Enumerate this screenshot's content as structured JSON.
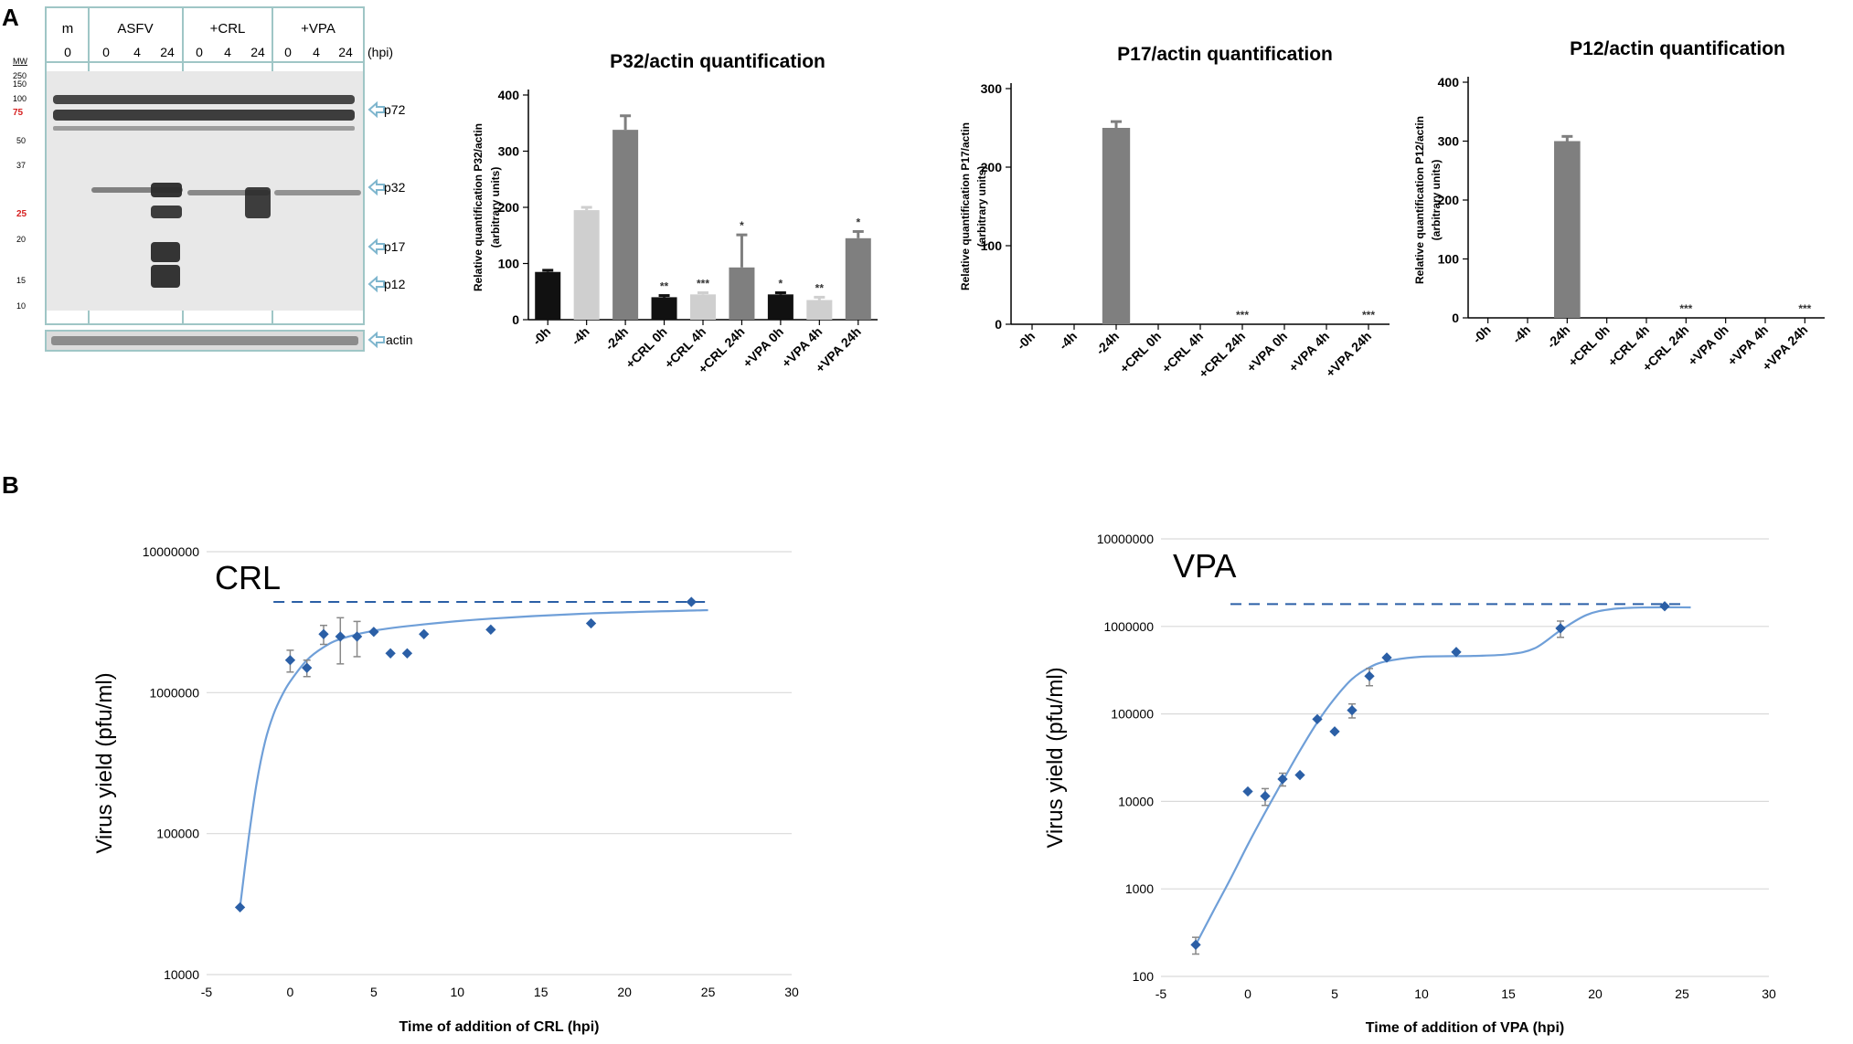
{
  "panel_labels": {
    "a": "A",
    "b": "B"
  },
  "colors": {
    "black_bar": "#111111",
    "light_bar": "#cfcfcf",
    "gray_bar": "#7f7f7f",
    "point": "#2b5fa6",
    "fit": "#6f9fd8",
    "grid": "#d9d9d9",
    "blot_bg": "#e7e7e7",
    "arrow": "#9fd0e3"
  },
  "blot": {
    "groups": [
      "m",
      "ASFV",
      "+CRL",
      "+VPA"
    ],
    "lanes": [
      "0",
      "0",
      "4",
      "24",
      "0",
      "4",
      "24",
      "0",
      "4",
      "24"
    ],
    "hpi_label": "(hpi)",
    "mw_label": "MW",
    "mw_markers": [
      "250",
      "150",
      "100",
      "75",
      "50",
      "37",
      "25",
      "20",
      "15",
      "10"
    ],
    "bands": [
      "p72",
      "p32",
      "p17",
      "p12",
      "actin"
    ]
  },
  "chart_data": [
    {
      "type": "bar",
      "title": "P32/actin quantification",
      "ylabel": "Relative quantification P32/actin",
      "ylabel2": "(arbitrary units)",
      "categories": [
        "-0h",
        "-4h",
        "-24h",
        "+CRL 0h",
        "+CRL 4h",
        "+CRL 24h",
        "+VPA 0h",
        "+VPA 4h",
        "+VPA 24h"
      ],
      "values": [
        85,
        195,
        338,
        40,
        45,
        93,
        45,
        35,
        145
      ],
      "errors": [
        3,
        5,
        25,
        3,
        3,
        58,
        3,
        5,
        12
      ],
      "significance": [
        "",
        "",
        "",
        "**",
        "***",
        "*",
        "*",
        "**",
        "*"
      ],
      "bar_colors": [
        "black",
        "light",
        "gray",
        "black",
        "light",
        "gray",
        "black",
        "light",
        "gray"
      ],
      "yticks": [
        0,
        100,
        200,
        300,
        400
      ],
      "ylim": [
        0,
        400
      ]
    },
    {
      "type": "bar",
      "title": "P17/actin quantification",
      "ylabel": "Relative quantification P17/actin",
      "ylabel2": "(arbitrary units)",
      "categories": [
        "-0h",
        "-4h",
        "-24h",
        "+CRL 0h",
        "+CRL 4h",
        "+CRL 24h",
        "+VPA 0h",
        "+VPA 4h",
        "+VPA 24h"
      ],
      "values": [
        0,
        0,
        250,
        0,
        0,
        0,
        0,
        0,
        0
      ],
      "errors": [
        0,
        0,
        8,
        0,
        0,
        0,
        0,
        0,
        0
      ],
      "significance": [
        "",
        "",
        "",
        "",
        "",
        "***",
        "",
        "",
        "***"
      ],
      "bar_colors": [
        "black",
        "light",
        "gray",
        "black",
        "light",
        "gray",
        "black",
        "light",
        "gray"
      ],
      "yticks": [
        0,
        100,
        200,
        300
      ],
      "ylim": [
        0,
        300
      ]
    },
    {
      "type": "bar",
      "title": "P12/actin quantification",
      "ylabel": "Relative quantification P12/actin",
      "ylabel2": "(arbitrary units)",
      "categories": [
        "-0h",
        "-4h",
        "-24h",
        "+CRL 0h",
        "+CRL 4h",
        "+CRL 24h",
        "+VPA 0h",
        "+VPA 4h",
        "+VPA 24h"
      ],
      "values": [
        0,
        0,
        300,
        0,
        0,
        0,
        0,
        0,
        0
      ],
      "errors": [
        0,
        0,
        8,
        0,
        0,
        0,
        0,
        0,
        0
      ],
      "significance": [
        "",
        "",
        "",
        "",
        "",
        "***",
        "",
        "",
        "***"
      ],
      "bar_colors": [
        "black",
        "light",
        "gray",
        "black",
        "light",
        "gray",
        "black",
        "light",
        "gray"
      ],
      "yticks": [
        0,
        100,
        200,
        300,
        400
      ],
      "ylim": [
        0,
        400
      ]
    },
    {
      "type": "scatter",
      "scale": "log",
      "annotation": "CRL",
      "xlabel": "Time of addition of CRL (hpi)",
      "ylabel": "Virus yield (pfu/ml)",
      "xticks": [
        -5,
        0,
        5,
        10,
        15,
        20,
        25,
        30
      ],
      "yticks": [
        10000,
        100000,
        1000000,
        10000000
      ],
      "ytick_labels": [
        "10000",
        "100000",
        "1000000",
        "10000000"
      ],
      "xlim": [
        -5,
        30
      ],
      "ylim": [
        10000,
        10000000
      ],
      "points": [
        {
          "x": -3,
          "y": 30000
        },
        {
          "x": 0,
          "y": 1700000,
          "err": 300000
        },
        {
          "x": 1,
          "y": 1500000,
          "err": 200000
        },
        {
          "x": 2,
          "y": 2600000,
          "err": 400000
        },
        {
          "x": 3,
          "y": 2500000,
          "err": 900000
        },
        {
          "x": 4,
          "y": 2500000,
          "err": 700000
        },
        {
          "x": 5,
          "y": 2700000
        },
        {
          "x": 6,
          "y": 1900000
        },
        {
          "x": 7,
          "y": 1900000
        },
        {
          "x": 8,
          "y": 2600000
        },
        {
          "x": 12,
          "y": 2800000
        },
        {
          "x": 18,
          "y": 3100000
        },
        {
          "x": 24,
          "y": 4400000
        }
      ],
      "fit_curve": [
        {
          "x": -3,
          "y": 30000
        },
        {
          "x": -2.5,
          "y": 90000
        },
        {
          "x": -2,
          "y": 230000
        },
        {
          "x": -1.5,
          "y": 450000
        },
        {
          "x": -1,
          "y": 700000
        },
        {
          "x": -0.5,
          "y": 950000
        },
        {
          "x": 0,
          "y": 1200000
        },
        {
          "x": 1,
          "y": 1700000
        },
        {
          "x": 2,
          "y": 2100000
        },
        {
          "x": 3,
          "y": 2400000
        },
        {
          "x": 5,
          "y": 2750000
        },
        {
          "x": 8,
          "y": 3050000
        },
        {
          "x": 12,
          "y": 3350000
        },
        {
          "x": 18,
          "y": 3650000
        },
        {
          "x": 25,
          "y": 3850000
        }
      ],
      "reference_line": {
        "y": 4400000,
        "x_from": -1,
        "x_to": 25
      }
    },
    {
      "type": "scatter",
      "scale": "log",
      "annotation": "VPA",
      "xlabel": "Time of addition of VPA (hpi)",
      "ylabel": "Virus yield (pfu/ml)",
      "xticks": [
        -5,
        0,
        5,
        10,
        15,
        20,
        25,
        30
      ],
      "yticks": [
        100,
        1000,
        10000,
        100000,
        1000000,
        10000000
      ],
      "ytick_labels": [
        "100",
        "1000",
        "10000",
        "100000",
        "1000000",
        "10000000"
      ],
      "xlim": [
        -5,
        30
      ],
      "ylim": [
        100,
        10000000
      ],
      "points": [
        {
          "x": -3,
          "y": 230,
          "err": 50
        },
        {
          "x": 0,
          "y": 13000
        },
        {
          "x": 1,
          "y": 11500,
          "err": 2500
        },
        {
          "x": 2,
          "y": 18000,
          "err": 3000
        },
        {
          "x": 3,
          "y": 20000
        },
        {
          "x": 4,
          "y": 87000
        },
        {
          "x": 5,
          "y": 63000
        },
        {
          "x": 6,
          "y": 110000,
          "err": 20000
        },
        {
          "x": 7,
          "y": 270000,
          "err": 60000
        },
        {
          "x": 8,
          "y": 440000
        },
        {
          "x": 12,
          "y": 510000
        },
        {
          "x": 18,
          "y": 950000,
          "err": 200000
        },
        {
          "x": 24,
          "y": 1700000
        }
      ],
      "fit_curve": [
        {
          "x": -3,
          "y": 230
        },
        {
          "x": -2,
          "y": 550
        },
        {
          "x": -1,
          "y": 1300
        },
        {
          "x": 0,
          "y": 3200
        },
        {
          "x": 1,
          "y": 7500
        },
        {
          "x": 2,
          "y": 17000
        },
        {
          "x": 3,
          "y": 38000
        },
        {
          "x": 4,
          "y": 80000
        },
        {
          "x": 5,
          "y": 150000
        },
        {
          "x": 6,
          "y": 250000
        },
        {
          "x": 7,
          "y": 340000
        },
        {
          "x": 8,
          "y": 400000
        },
        {
          "x": 10,
          "y": 450000
        },
        {
          "x": 13,
          "y": 460000
        },
        {
          "x": 15,
          "y": 480000
        },
        {
          "x": 16.5,
          "y": 560000
        },
        {
          "x": 18,
          "y": 900000
        },
        {
          "x": 19.5,
          "y": 1350000
        },
        {
          "x": 21,
          "y": 1580000
        },
        {
          "x": 23,
          "y": 1650000
        },
        {
          "x": 25.5,
          "y": 1650000
        }
      ],
      "reference_line": {
        "y": 1800000,
        "x_from": -1,
        "x_to": 25
      }
    }
  ]
}
